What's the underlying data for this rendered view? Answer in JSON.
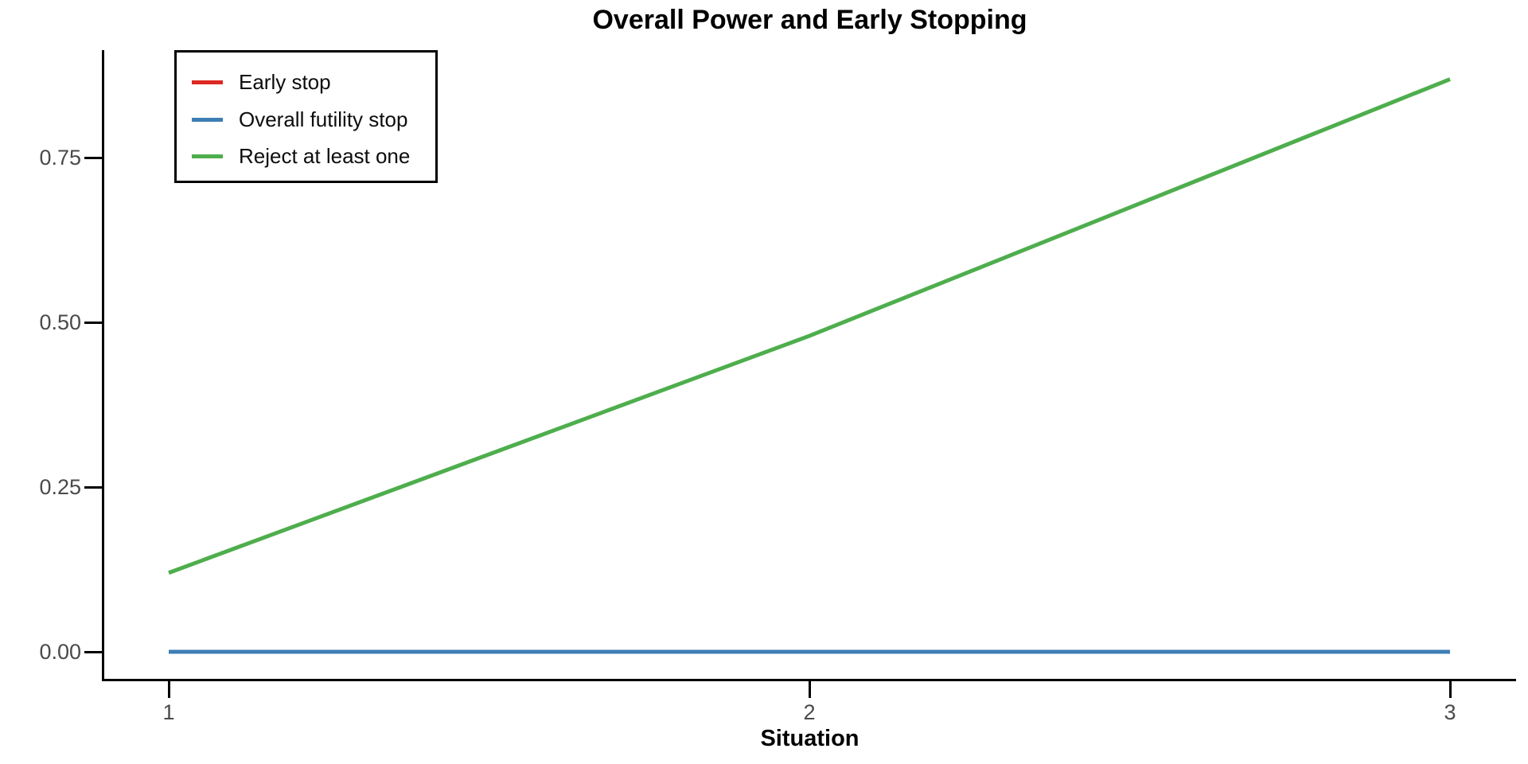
{
  "chart_data": {
    "type": "line",
    "title": "Overall Power and Early Stopping",
    "xlabel": "Situation",
    "ylabel": "",
    "x": [
      1,
      2,
      3
    ],
    "x_tick_labels": [
      "1",
      "2",
      "3"
    ],
    "y_ticks": [
      {
        "value": 0.0,
        "label": "0.00"
      },
      {
        "value": 0.25,
        "label": "0.25"
      },
      {
        "value": 0.5,
        "label": "0.50"
      },
      {
        "value": 0.75,
        "label": "0.75"
      }
    ],
    "xlim": [
      1,
      3
    ],
    "ylim": [
      0,
      0.91
    ],
    "grid": false,
    "legend_position": "top-left",
    "series": [
      {
        "name": "Early stop",
        "color": "#DE2823",
        "values": [
          0.0,
          0.0,
          0.0
        ],
        "hidden_behind": "Overall futility stop"
      },
      {
        "name": "Overall futility stop",
        "color": "#3E7EB5",
        "values": [
          0.0,
          0.0,
          0.0
        ]
      },
      {
        "name": "Reject at least one",
        "color": "#4EAE4D",
        "values": [
          0.12,
          0.48,
          0.87
        ]
      }
    ]
  },
  "colors": {
    "axis": "#000000",
    "tick_label": "#4a4a4a",
    "title_text": "#000000",
    "legend_border": "#000000",
    "background": "#ffffff"
  }
}
